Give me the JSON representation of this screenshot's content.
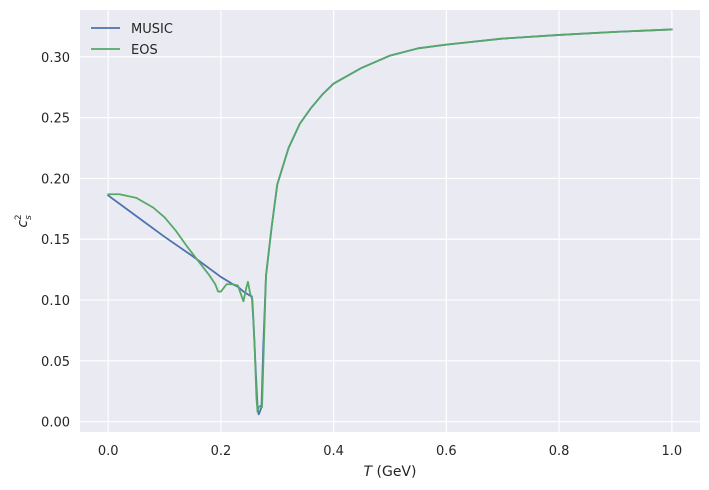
{
  "chart_data": {
    "type": "line",
    "xlabel_var": "T",
    "xlabel_unit": " (GeV)",
    "ylabel_base": "c",
    "ylabel_sub": "s",
    "ylabel_sup": "2",
    "xlim": [
      -0.05,
      1.05
    ],
    "ylim": [
      -0.0085,
      0.3385
    ],
    "xticks": [
      0.0,
      0.2,
      0.4,
      0.6,
      0.8,
      1.0
    ],
    "xtick_labels": [
      "0.0",
      "0.2",
      "0.4",
      "0.6",
      "0.8",
      "1.0"
    ],
    "yticks": [
      0.0,
      0.05,
      0.1,
      0.15,
      0.2,
      0.25,
      0.3
    ],
    "ytick_labels": [
      "0.00",
      "0.05",
      "0.10",
      "0.15",
      "0.20",
      "0.25",
      "0.30"
    ],
    "grid": true,
    "legend_position": "top-left",
    "series": [
      {
        "name": "MUSIC",
        "color": "#4c72b0",
        "points": [
          [
            0.0,
            0.186
          ],
          [
            0.05,
            0.169
          ],
          [
            0.1,
            0.152
          ],
          [
            0.15,
            0.136
          ],
          [
            0.2,
            0.119
          ],
          [
            0.225,
            0.112
          ],
          [
            0.23,
            0.111
          ],
          [
            0.24,
            0.107
          ],
          [
            0.25,
            0.104
          ],
          [
            0.255,
            0.103
          ],
          [
            0.258,
            0.08
          ],
          [
            0.262,
            0.04
          ],
          [
            0.265,
            0.012
          ],
          [
            0.267,
            0.006
          ],
          [
            0.269,
            0.008
          ],
          [
            0.272,
            0.012
          ],
          [
            0.275,
            0.06
          ],
          [
            0.28,
            0.12
          ],
          [
            0.29,
            0.16
          ],
          [
            0.3,
            0.195
          ],
          [
            0.32,
            0.225
          ],
          [
            0.34,
            0.245
          ],
          [
            0.36,
            0.258
          ],
          [
            0.38,
            0.269
          ],
          [
            0.4,
            0.278
          ],
          [
            0.45,
            0.291
          ],
          [
            0.5,
            0.301
          ],
          [
            0.55,
            0.307
          ],
          [
            0.6,
            0.31
          ],
          [
            0.7,
            0.315
          ],
          [
            0.8,
            0.318
          ],
          [
            0.9,
            0.3205
          ],
          [
            1.0,
            0.3225
          ]
        ]
      },
      {
        "name": "EOS",
        "color": "#55a868",
        "points": [
          [
            0.0,
            0.187
          ],
          [
            0.02,
            0.187
          ],
          [
            0.05,
            0.184
          ],
          [
            0.08,
            0.176
          ],
          [
            0.1,
            0.168
          ],
          [
            0.12,
            0.157
          ],
          [
            0.14,
            0.144
          ],
          [
            0.16,
            0.132
          ],
          [
            0.18,
            0.12
          ],
          [
            0.19,
            0.113
          ],
          [
            0.195,
            0.107
          ],
          [
            0.2,
            0.107
          ],
          [
            0.21,
            0.113
          ],
          [
            0.22,
            0.113
          ],
          [
            0.23,
            0.112
          ],
          [
            0.24,
            0.099
          ],
          [
            0.245,
            0.11
          ],
          [
            0.248,
            0.115
          ],
          [
            0.252,
            0.105
          ],
          [
            0.256,
            0.1
          ],
          [
            0.26,
            0.06
          ],
          [
            0.263,
            0.02
          ],
          [
            0.265,
            0.008
          ],
          [
            0.267,
            0.012
          ],
          [
            0.27,
            0.013
          ],
          [
            0.273,
            0.012
          ],
          [
            0.276,
            0.06
          ],
          [
            0.28,
            0.12
          ],
          [
            0.29,
            0.16
          ],
          [
            0.3,
            0.195
          ],
          [
            0.32,
            0.225
          ],
          [
            0.34,
            0.245
          ],
          [
            0.36,
            0.258
          ],
          [
            0.38,
            0.269
          ],
          [
            0.4,
            0.278
          ],
          [
            0.45,
            0.291
          ],
          [
            0.5,
            0.301
          ],
          [
            0.55,
            0.307
          ],
          [
            0.6,
            0.31
          ],
          [
            0.7,
            0.315
          ],
          [
            0.8,
            0.318
          ],
          [
            0.9,
            0.3205
          ],
          [
            1.0,
            0.3225
          ]
        ]
      }
    ]
  }
}
